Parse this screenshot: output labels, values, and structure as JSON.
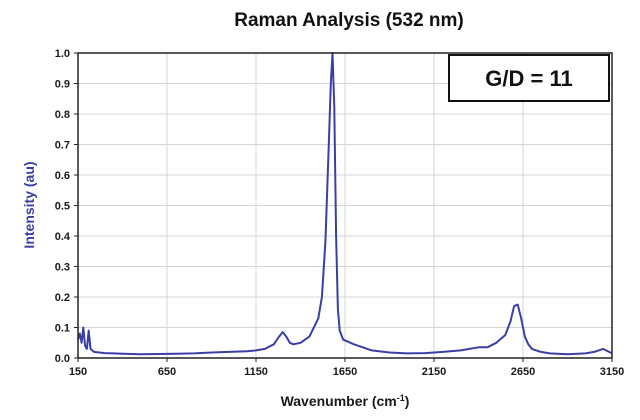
{
  "chart_data": {
    "type": "line",
    "title": "Raman Analysis (532 nm)",
    "xlabel": "Wavenumber (cm",
    "xlabel_sup": "-1",
    "xlabel_suffix": ")",
    "ylabel": "Intensity (au)",
    "xlim": [
      150,
      3150
    ],
    "ylim": [
      0,
      1.0
    ],
    "x_ticks": [
      150,
      650,
      1150,
      1650,
      2150,
      2650,
      3150
    ],
    "y_ticks": [
      0.0,
      0.1,
      0.2,
      0.3,
      0.4,
      0.5,
      0.6,
      0.7,
      0.8,
      0.9,
      1.0
    ],
    "x_tick_labels": [
      "150",
      "650",
      "1150",
      "1650",
      "2150",
      "2650",
      "3150"
    ],
    "y_tick_labels": [
      "0.0",
      "0.1",
      "0.2",
      "0.3",
      "0.4",
      "0.5",
      "0.6",
      "0.7",
      "0.8",
      "0.9",
      "1.0"
    ],
    "grid": true,
    "annotation": "G/D = 11",
    "colors": {
      "line": "#3a3fa6",
      "ylabel": "#3a3fa6",
      "grid": "#d4d4d4",
      "frame": "#222222"
    },
    "series": [
      {
        "x": [
          150,
          160,
          170,
          180,
          190,
          200,
          210,
          220,
          240,
          270,
          300,
          350,
          400,
          450,
          500,
          600,
          700,
          800,
          900,
          1000,
          1100,
          1150,
          1200,
          1250,
          1280,
          1300,
          1320,
          1340,
          1360,
          1400,
          1450,
          1500,
          1520,
          1540,
          1560,
          1570,
          1580,
          1590,
          1600,
          1610,
          1620,
          1640,
          1660,
          1700,
          1750,
          1800,
          1900,
          2000,
          2100,
          2200,
          2300,
          2400,
          2450,
          2500,
          2550,
          2580,
          2600,
          2620,
          2640,
          2660,
          2680,
          2700,
          2750,
          2800,
          2900,
          3000,
          3050,
          3100,
          3150
        ],
        "y": [
          0.06,
          0.08,
          0.05,
          0.1,
          0.04,
          0.03,
          0.09,
          0.03,
          0.02,
          0.018,
          0.016,
          0.015,
          0.014,
          0.013,
          0.012,
          0.013,
          0.014,
          0.015,
          0.018,
          0.02,
          0.022,
          0.025,
          0.03,
          0.045,
          0.07,
          0.085,
          0.07,
          0.05,
          0.045,
          0.05,
          0.07,
          0.13,
          0.2,
          0.38,
          0.72,
          0.9,
          1.0,
          0.82,
          0.4,
          0.16,
          0.09,
          0.06,
          0.055,
          0.045,
          0.035,
          0.025,
          0.018,
          0.015,
          0.016,
          0.02,
          0.025,
          0.035,
          0.035,
          0.05,
          0.075,
          0.12,
          0.17,
          0.175,
          0.13,
          0.07,
          0.045,
          0.03,
          0.02,
          0.015,
          0.012,
          0.015,
          0.02,
          0.03,
          0.015
        ]
      }
    ]
  }
}
